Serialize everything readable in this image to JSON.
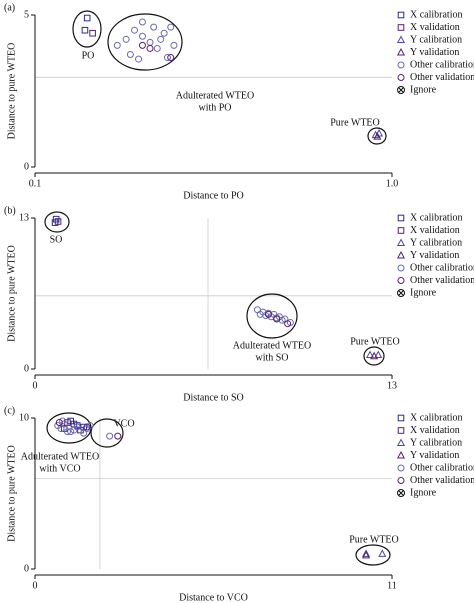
{
  "chart_data": [
    {
      "type": "scatter",
      "panel": "(a)",
      "xlabel": "Distance to PO",
      "ylabel": "Distance to pure WTEO",
      "xscale": "log",
      "xlim": [
        0.1,
        1
      ],
      "xticks": [
        0.1,
        {
          "value": 1,
          "label": "1.0"
        }
      ],
      "ylim": [
        0,
        5
      ],
      "yticks": [
        0,
        5
      ],
      "hline": 2.95,
      "legend": "right",
      "annotations": [
        {
          "lines": [
            "PO"
          ]
        },
        {
          "lines": [
            "Adulterated WTEO",
            "with PO"
          ]
        },
        {
          "lines": [
            "Pure WTEO"
          ]
        }
      ],
      "series": [
        {
          "name": "X calibration",
          "marker": "square",
          "color": "#2b2b8f",
          "x": [
            0.14,
            0.138
          ],
          "values": [
            4.9,
            4.5
          ]
        },
        {
          "name": "X validation",
          "marker": "square",
          "color": "#5a1f6e",
          "x": [
            0.145
          ],
          "values": [
            4.4
          ]
        },
        {
          "name": "Y calibration",
          "marker": "triangle",
          "color": "#4a4aa0",
          "x": [
            0.9,
            0.92
          ],
          "values": [
            1.05,
            1.1
          ]
        },
        {
          "name": "Y validation",
          "marker": "triangle",
          "color": "#5a1f6e",
          "x": [
            0.91
          ],
          "values": [
            1.0
          ]
        },
        {
          "name": "Other calibration",
          "marker": "circle",
          "color": "#6a6ab0",
          "x": [
            0.17,
            0.18,
            0.19,
            0.2,
            0.21,
            0.22,
            0.23,
            0.24,
            0.245,
            0.2,
            0.185,
            0.215,
            0.235,
            0.195,
            0.225
          ],
          "values": [
            4.0,
            4.2,
            4.5,
            4.3,
            4.1,
            3.9,
            4.4,
            4.6,
            4.0,
            4.77,
            3.7,
            4.6,
            3.6,
            3.55,
            4.2
          ]
        },
        {
          "name": "Other validation",
          "marker": "circle",
          "color": "#5a1f6e",
          "x": [
            0.21,
            0.24,
            0.2
          ],
          "values": [
            3.9,
            3.6,
            4.0
          ]
        },
        {
          "name": "Ignore",
          "marker": "ignore",
          "color": "#111111",
          "x": [],
          "values": []
        }
      ]
    },
    {
      "type": "scatter",
      "panel": "(b)",
      "xlabel": "Distance to SO",
      "ylabel": "Distance to pure WTEO",
      "xscale": "linear",
      "xlim": [
        0,
        13
      ],
      "xticks": [
        0,
        13
      ],
      "ylim": [
        0,
        13
      ],
      "yticks": [
        0,
        13
      ],
      "vline": 6.3,
      "hline": 6.3,
      "legend": "right",
      "annotations": [
        {
          "lines": [
            "SO"
          ]
        },
        {
          "lines": [
            "Adulterated WTEO",
            "with SO"
          ]
        },
        {
          "lines": [
            "Pure WTEO"
          ]
        }
      ],
      "series": [
        {
          "name": "X calibration",
          "marker": "square",
          "color": "#2b2b8f",
          "x": [
            0.77,
            0.73
          ],
          "values": [
            12.9,
            12.6
          ]
        },
        {
          "name": "X validation",
          "marker": "square",
          "color": "#5a1f6e",
          "x": [
            0.84
          ],
          "values": [
            12.7
          ]
        },
        {
          "name": "Y calibration",
          "marker": "triangle",
          "color": "#4a4aa0",
          "x": [
            12.2,
            12.5
          ],
          "values": [
            1.2,
            1.2
          ]
        },
        {
          "name": "Y validation",
          "marker": "triangle",
          "color": "#5a1f6e",
          "x": [
            12.35
          ],
          "values": [
            1.1
          ]
        },
        {
          "name": "Other calibration",
          "marker": "circle",
          "color": "#6a6ab0",
          "x": [
            8.1,
            8.3,
            8.5,
            8.7,
            8.9,
            9.1,
            9.3,
            8.4,
            8.6,
            8.8,
            9.0,
            8.2
          ],
          "values": [
            5.1,
            4.9,
            4.8,
            4.7,
            4.5,
            4.3,
            4.0,
            4.6,
            4.5,
            4.4,
            4.2,
            4.7
          ]
        },
        {
          "name": "Other validation",
          "marker": "circle",
          "color": "#5a1f6e",
          "x": [
            8.5,
            8.8,
            9.2
          ],
          "values": [
            4.7,
            4.3,
            3.9
          ]
        },
        {
          "name": "Ignore",
          "marker": "ignore",
          "color": "#111111",
          "x": [],
          "values": []
        }
      ]
    },
    {
      "type": "scatter",
      "panel": "(c)",
      "xlabel": "Distance to VCO",
      "ylabel": "Distance to pure WTEO",
      "xscale": "linear",
      "xlim": [
        0,
        11
      ],
      "xticks": [
        0,
        11
      ],
      "ylim": [
        0,
        10
      ],
      "yticks": [
        0,
        10
      ],
      "vline": 2.0,
      "hline": 6.0,
      "legend": "right",
      "annotations": [
        {
          "lines": [
            "Adulterated WTEO",
            "with VCO"
          ]
        },
        {
          "lines": [
            "VCO"
          ]
        },
        {
          "lines": [
            "Pure WTEO"
          ]
        }
      ],
      "series": [
        {
          "name": "X calibration",
          "marker": "square",
          "color": "#2b2b8f",
          "x": [
            1.1,
            1.3,
            0.9,
            1.5,
            1.2
          ],
          "values": [
            9.8,
            9.5,
            9.3,
            9.4,
            9.6
          ]
        },
        {
          "name": "X validation",
          "marker": "square",
          "color": "#5a1f6e",
          "x": [
            1.0,
            1.4
          ],
          "values": [
            9.7,
            9.2
          ]
        },
        {
          "name": "Y calibration",
          "marker": "triangle",
          "color": "#4a4aa0",
          "x": [
            10.2,
            10.7
          ],
          "values": [
            1.0,
            1.0
          ]
        },
        {
          "name": "Y validation",
          "marker": "triangle",
          "color": "#5a1f6e",
          "x": [
            10.2
          ],
          "values": [
            0.9
          ]
        },
        {
          "name": "Other calibration",
          "marker": "circle",
          "color": "#6a6ab0",
          "x": [
            0.7,
            0.8,
            0.9,
            1.0,
            1.2,
            1.3,
            1.5,
            1.6,
            1.7,
            0.85,
            1.1,
            2.3
          ],
          "values": [
            9.5,
            9.3,
            9.6,
            9.1,
            9.2,
            9.4,
            9.0,
            9.3,
            9.5,
            9.8,
            9.1,
            8.8
          ]
        },
        {
          "name": "Other validation",
          "marker": "circle",
          "color": "#5a1f6e",
          "x": [
            0.75,
            1.6,
            2.55
          ],
          "values": [
            9.7,
            9.4,
            8.8
          ]
        },
        {
          "name": "Ignore",
          "marker": "ignore",
          "color": "#111111",
          "x": [],
          "values": []
        }
      ]
    }
  ]
}
